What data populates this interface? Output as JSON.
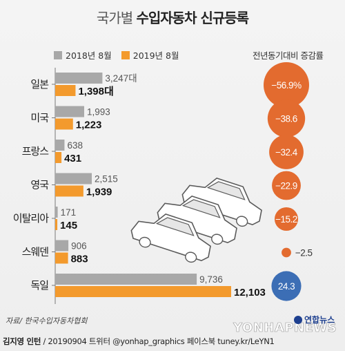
{
  "header": {
    "title_light": "국가별",
    "title_bold": "수입자동차 신규등록"
  },
  "legend": [
    {
      "label": "2018년 8월",
      "color": "#a8a8a8"
    },
    {
      "label": "2019년 8월",
      "color": "#f39a2d"
    }
  ],
  "rate_title": "전년동기대비 증감률",
  "unit": "대",
  "colors": {
    "bar_2018": "#a8a8a8",
    "bar_2019": "#f39a2d",
    "bubble_negative": "#e36b2f",
    "bubble_positive": "#3c6eb5"
  },
  "chart_data": {
    "type": "bar",
    "orientation": "horizontal",
    "categories": [
      "일본",
      "미국",
      "프랑스",
      "영국",
      "이탈리아",
      "스웨덴",
      "독일"
    ],
    "series": [
      {
        "name": "2018년 8월",
        "values": [
          3247,
          1993,
          638,
          2515,
          171,
          906,
          9736
        ]
      },
      {
        "name": "2019년 8월",
        "values": [
          1398,
          1223,
          431,
          1939,
          145,
          883,
          12103
        ]
      }
    ],
    "value_labels": {
      "2018년 8월": [
        "3,247대",
        "1,993",
        "638",
        "2,515",
        "171",
        "906",
        "9,736"
      ],
      "2019년 8월": [
        "1,398대",
        "1,223",
        "431",
        "1,939",
        "145",
        "883",
        "12,103"
      ]
    },
    "change_rate": {
      "name": "전년동기대비 증감률",
      "values": [
        -56.9,
        -38.6,
        -32.4,
        -22.9,
        -15.2,
        -2.5,
        24.3
      ],
      "labels": [
        "-56.9%",
        "-38.6",
        "-32.4",
        "-22.9",
        "-15.2",
        "-2.5",
        "24.3"
      ]
    }
  },
  "footer": {
    "source": "자료/ 한국수입자동차협회",
    "author": "김지영 인턴",
    "credit": " / 20190904  트위터 @yonhap_graphics  페이스북 tuney.kr/LeYN1",
    "watermark": "YONHAPNEWS",
    "brand": "연합뉴스"
  }
}
